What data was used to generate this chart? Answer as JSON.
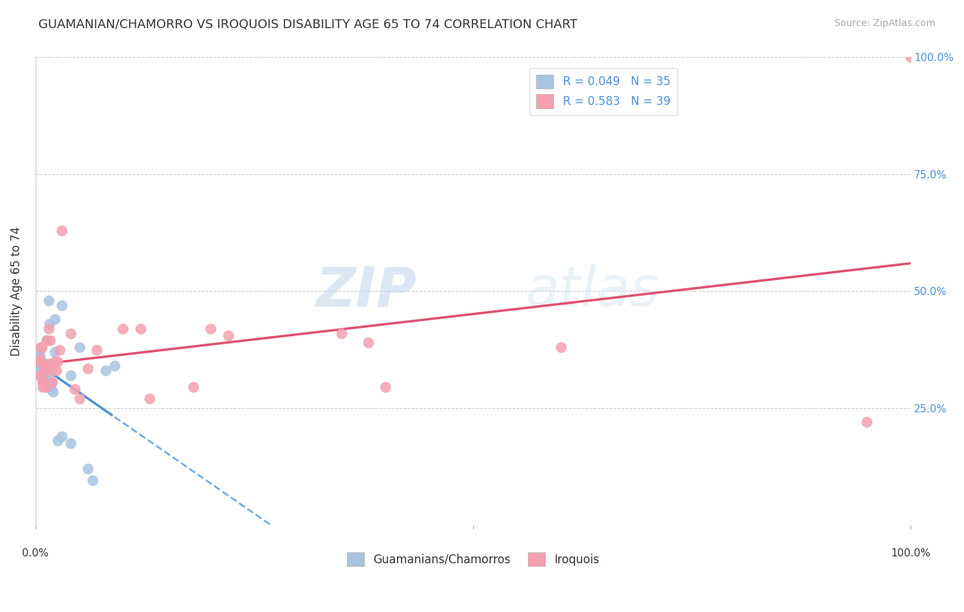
{
  "title": "GUAMANIAN/CHAMORRO VS IROQUOIS DISABILITY AGE 65 TO 74 CORRELATION CHART",
  "source": "Source: ZipAtlas.com",
  "ylabel": "Disability Age 65 to 74",
  "legend_r1": "R = 0.049   N = 35",
  "legend_r2": "R = 0.583   N = 39",
  "legend_label1": "Guamanians/Chamorros",
  "legend_label2": "Iroquois",
  "color_blue": "#a8c4e0",
  "color_pink": "#f4a0b0",
  "line_blue": "#4a90d9",
  "line_pink": "#e05070",
  "watermark_zip": "ZIP",
  "watermark_atlas": "atlas",
  "xlim": [
    0,
    1
  ],
  "ylim": [
    0,
    1
  ],
  "guamanian_x": [
    0.005,
    0.005,
    0.005,
    0.005,
    0.005,
    0.006,
    0.006,
    0.008,
    0.008,
    0.01,
    0.01,
    0.01,
    0.012,
    0.012,
    0.013,
    0.013,
    0.015,
    0.015,
    0.015,
    0.016,
    0.018,
    0.018,
    0.02,
    0.022,
    0.022,
    0.025,
    0.03,
    0.03,
    0.04,
    0.04,
    0.05,
    0.06,
    0.065,
    0.08,
    0.09
  ],
  "guamanian_y": [
    0.33,
    0.345,
    0.355,
    0.36,
    0.37,
    0.32,
    0.33,
    0.31,
    0.32,
    0.295,
    0.33,
    0.345,
    0.295,
    0.31,
    0.305,
    0.395,
    0.305,
    0.32,
    0.48,
    0.43,
    0.29,
    0.305,
    0.285,
    0.37,
    0.44,
    0.18,
    0.19,
    0.47,
    0.175,
    0.32,
    0.38,
    0.12,
    0.095,
    0.33,
    0.34
  ],
  "iroquois_x": [
    0.004,
    0.005,
    0.005,
    0.006,
    0.007,
    0.008,
    0.008,
    0.009,
    0.01,
    0.01,
    0.012,
    0.013,
    0.015,
    0.016,
    0.017,
    0.018,
    0.019,
    0.022,
    0.024,
    0.025,
    0.028,
    0.03,
    0.04,
    0.045,
    0.05,
    0.06,
    0.07,
    0.1,
    0.12,
    0.13,
    0.18,
    0.2,
    0.22,
    0.35,
    0.38,
    0.4,
    0.6,
    0.95,
    1.0
  ],
  "iroquois_y": [
    0.35,
    0.32,
    0.355,
    0.38,
    0.38,
    0.295,
    0.305,
    0.31,
    0.33,
    0.34,
    0.295,
    0.395,
    0.42,
    0.345,
    0.395,
    0.33,
    0.305,
    0.35,
    0.33,
    0.35,
    0.375,
    0.63,
    0.41,
    0.29,
    0.27,
    0.335,
    0.375,
    0.42,
    0.42,
    0.27,
    0.295,
    0.42,
    0.405,
    0.41,
    0.39,
    0.295,
    0.38,
    0.22,
    1.0
  ],
  "background_color": "#ffffff",
  "grid_color": "#cccccc"
}
